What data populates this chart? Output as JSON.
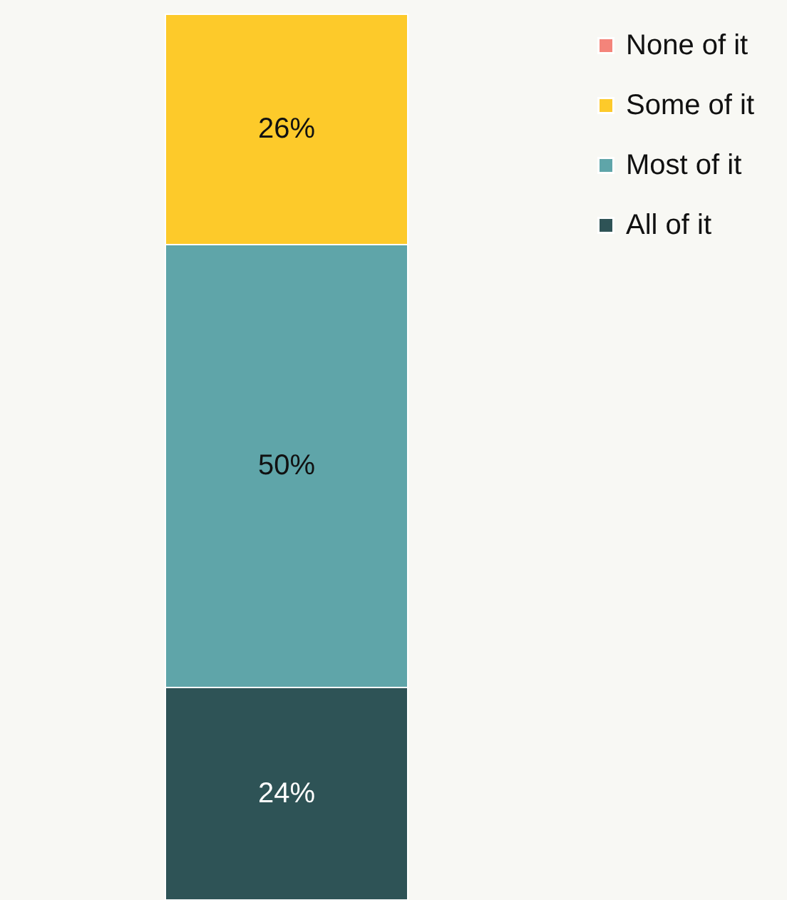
{
  "chart_data": {
    "type": "bar",
    "stacked": true,
    "categories": [
      null
    ],
    "legend": "top right",
    "series": [
      {
        "name": "All of it",
        "color": "#2e5356",
        "values": [
          24
        ],
        "value_labels": [
          "24%"
        ]
      },
      {
        "name": "Most of it",
        "color": "#5fa5a9",
        "values": [
          50
        ],
        "value_labels": [
          "50%"
        ]
      },
      {
        "name": "Some of it",
        "color": "#fdca2a",
        "values": [
          26
        ],
        "value_labels": [
          "26%"
        ]
      },
      {
        "name": "None of it",
        "color": "#f4847a",
        "values": [
          null
        ],
        "value_labels": [
          null
        ]
      }
    ]
  }
}
